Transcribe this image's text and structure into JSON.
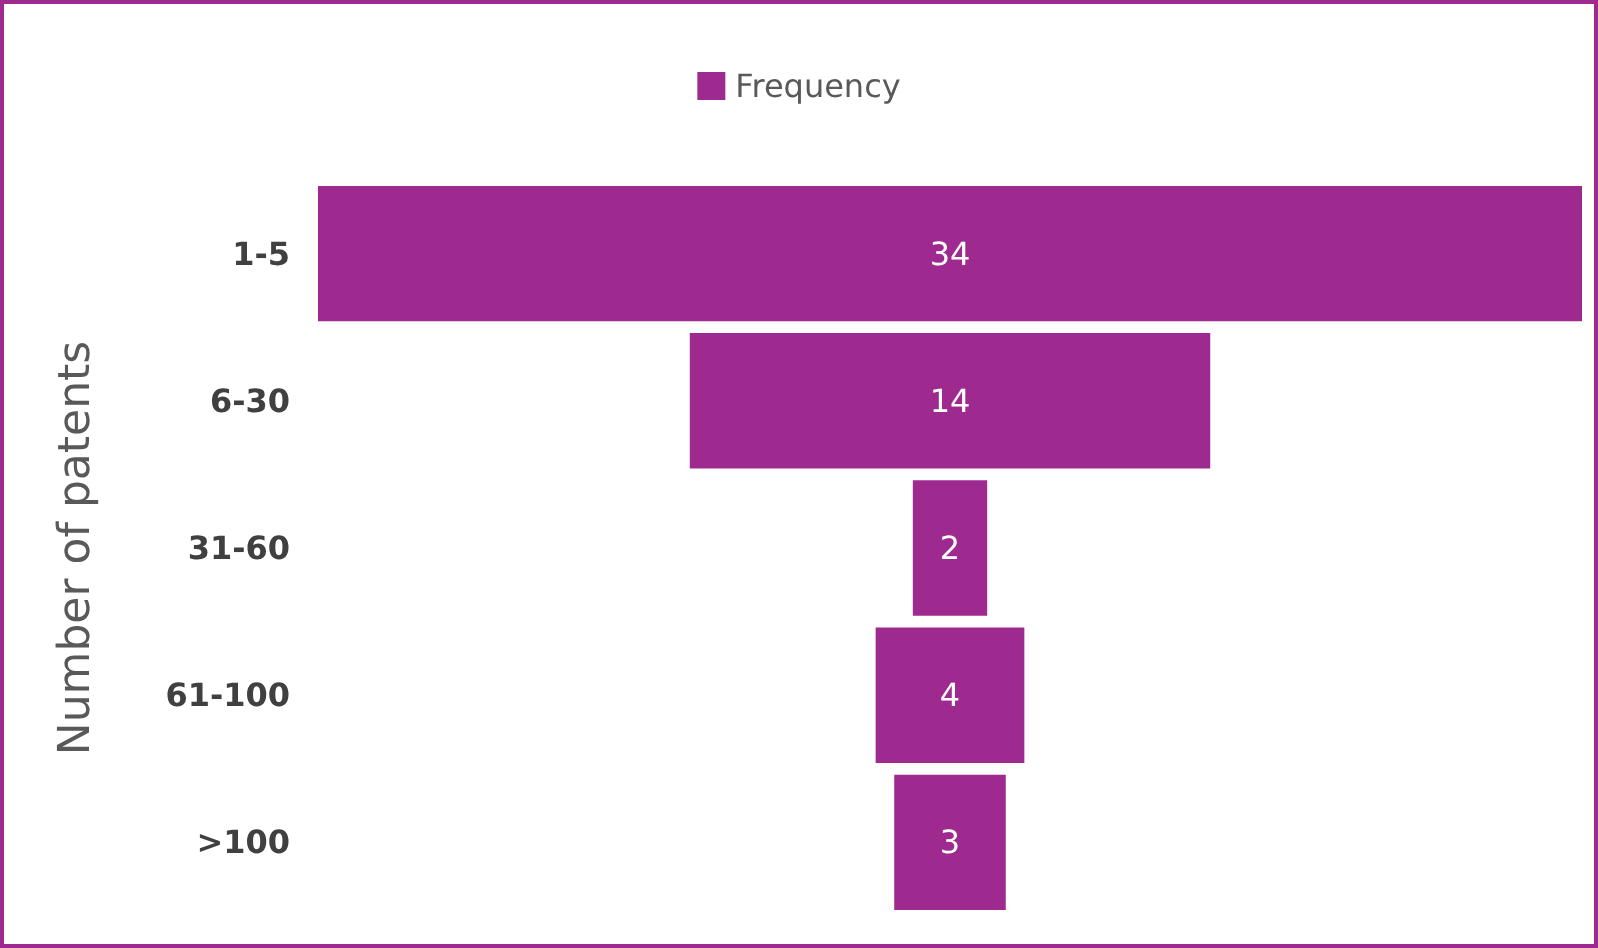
{
  "chart_data": {
    "type": "other",
    "ylabel": "Number of patents",
    "categories": [
      "1-5",
      "6-30",
      "31-60",
      "61-100",
      ">100"
    ],
    "series": [
      {
        "name": "Frequency",
        "color": "#9e2a8f",
        "values": [
          34,
          14,
          2,
          4,
          3
        ]
      }
    ],
    "data_labels": true,
    "legend": "top"
  }
}
